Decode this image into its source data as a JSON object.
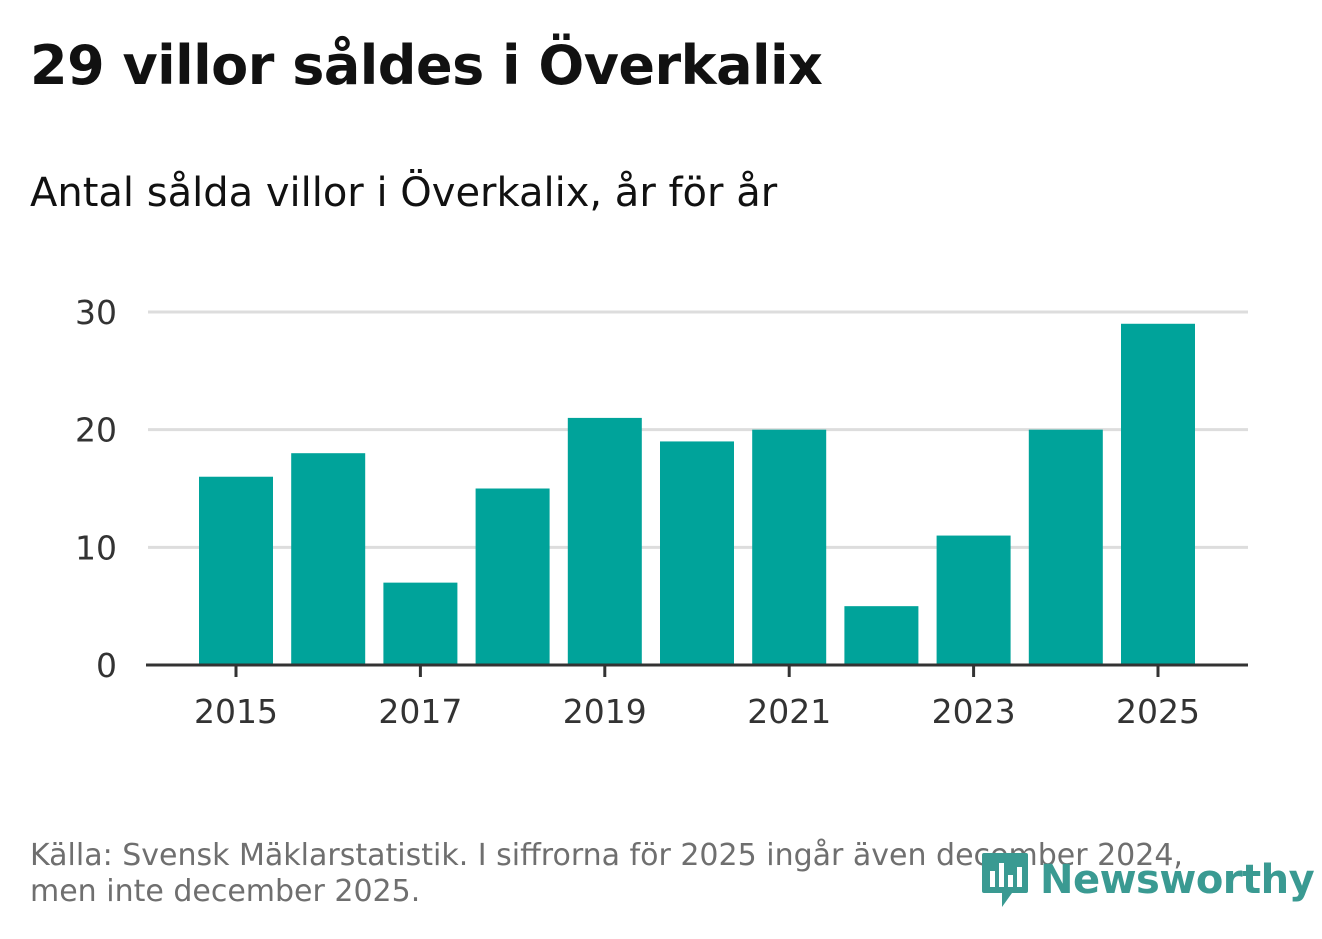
{
  "title": "29 villor såldes i Överkalix",
  "subtitle": "Antal sålda villor i Överkalix, år för år",
  "footer": {
    "line1": "Källa: Svensk Mäklarstatistik. I siffrorna för 2025 ingår även december 2024,",
    "line2": "men inte december 2025."
  },
  "logo": {
    "text": "Newsworthy",
    "icon": "bar-chart-speech-bubble-icon"
  },
  "colors": {
    "bar": "#00a39a",
    "logo": "#3a9a92",
    "grid": "#dddddd",
    "axis": "#333333"
  },
  "chart_data": {
    "type": "bar",
    "title": "Antal sålda villor i Överkalix, år för år",
    "xlabel": "",
    "ylabel": "",
    "categories": [
      "2015",
      "2016",
      "2017",
      "2018",
      "2019",
      "2020",
      "2021",
      "2022",
      "2023",
      "2024",
      "2025"
    ],
    "values": [
      16,
      18,
      7,
      15,
      21,
      19,
      20,
      5,
      11,
      20,
      29
    ],
    "x_tick_labels": [
      "2015",
      "2017",
      "2019",
      "2021",
      "2023",
      "2025"
    ],
    "y_ticks": [
      0,
      10,
      20,
      30
    ],
    "y_tick_labels": [
      "0",
      "10",
      "20",
      "30"
    ],
    "ylim": [
      0,
      30
    ],
    "grid": true,
    "legend": "none"
  }
}
